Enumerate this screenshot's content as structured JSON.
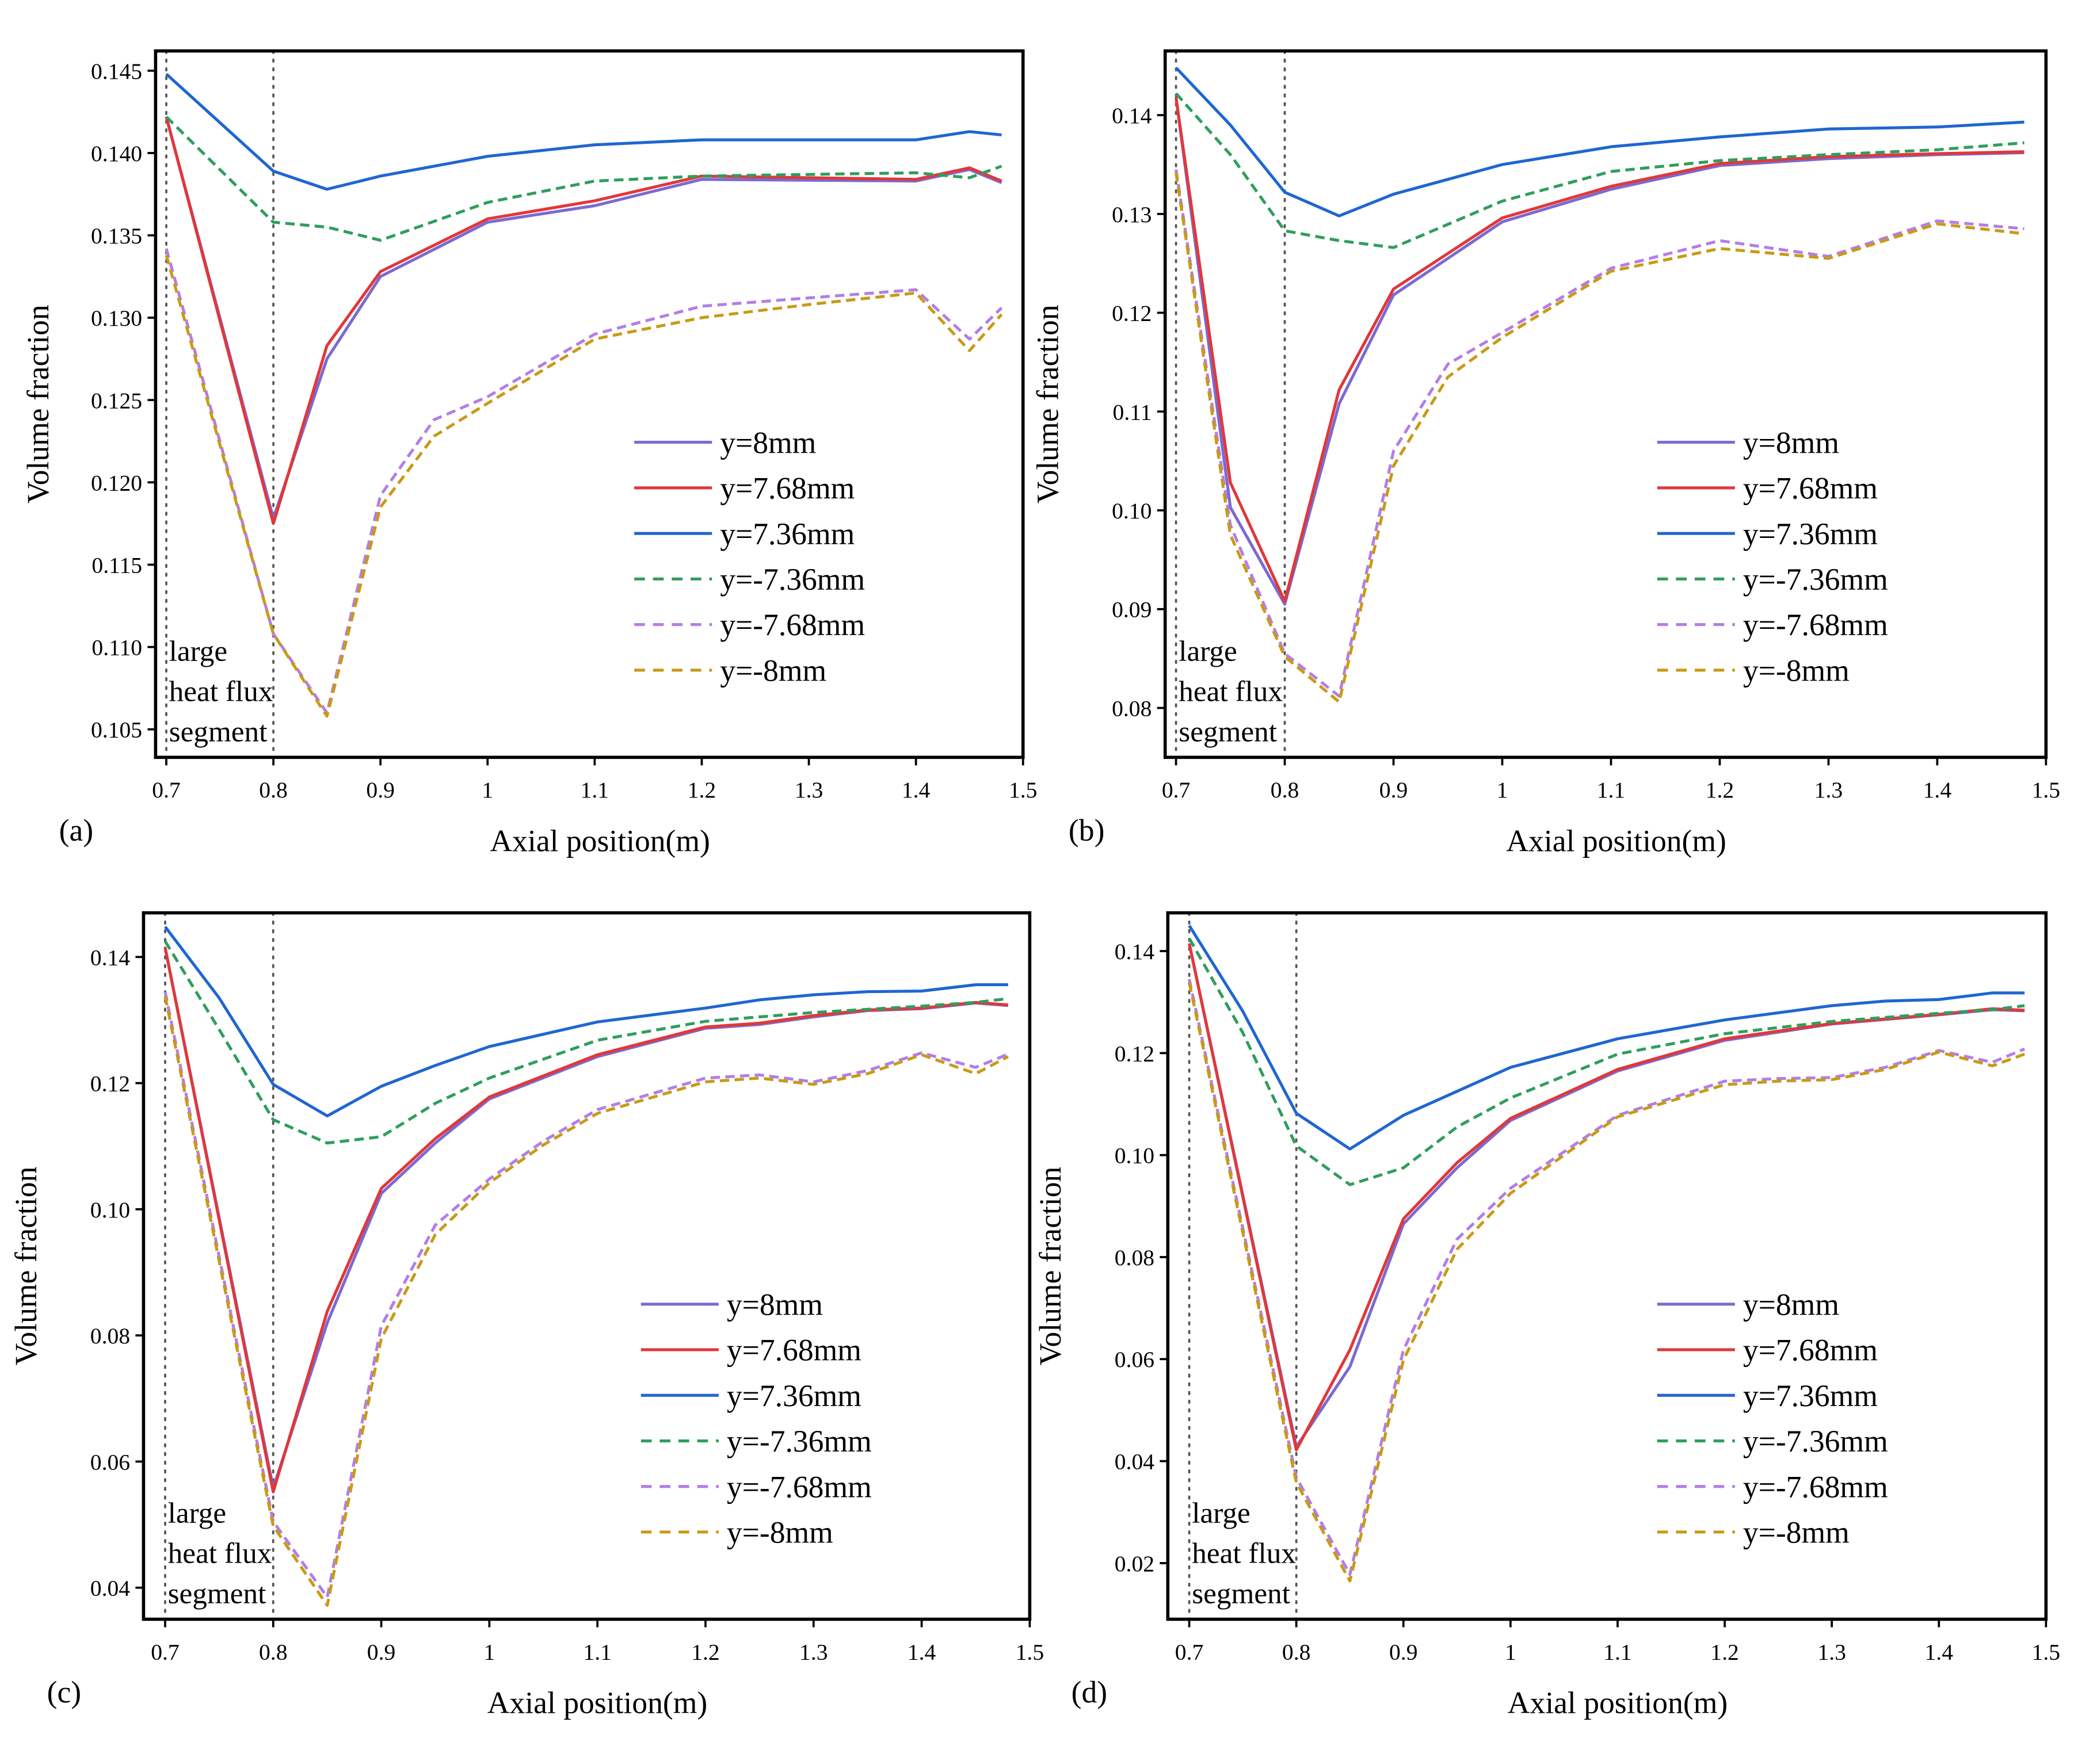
{
  "figure": {
    "colors": {
      "y=8mm": "#7b6ad1",
      "y=7.68mm": "#e0383a",
      "y=7.36mm": "#1f66d1",
      "y=-7.36mm": "#2f9e5c",
      "y=-7.68mm": "#b37ee6",
      "y=-8mm": "#c99a16"
    },
    "annotation_lines": [
      "large",
      "heat flux",
      "segment"
    ]
  },
  "chart_data": [
    {
      "type": "line",
      "panel_label": "(a)",
      "xlabel": "Axial position(m)",
      "ylabel": "Volume fraction",
      "xlim": [
        0.69,
        1.5
      ],
      "ylim": [
        0.1033,
        0.1462
      ],
      "xticks": [
        0.7,
        0.8,
        0.9,
        1.0,
        1.1,
        1.2,
        1.3,
        1.4,
        1.5
      ],
      "xtick_labels": [
        "0.7",
        "0.8",
        "0.9",
        "1",
        "1.1",
        "1.2",
        "1.3",
        "1.4",
        "1.5"
      ],
      "yticks": [
        0.105,
        0.11,
        0.115,
        0.12,
        0.125,
        0.13,
        0.135,
        0.14,
        0.145
      ],
      "ytick_labels": [
        "0.105",
        "0.110",
        "0.115",
        "0.120",
        "0.125",
        "0.130",
        "0.135",
        "0.140",
        "0.145"
      ],
      "vlines": [
        0.7,
        0.8
      ],
      "legend_position": "center-right",
      "series": [
        {
          "name": "y=8mm",
          "style": "solid",
          "x": [
            0.7,
            0.8,
            0.85,
            0.9,
            1.0,
            1.1,
            1.2,
            1.4,
            1.45,
            1.48
          ],
          "y": [
            0.1422,
            0.1178,
            0.1275,
            0.1325,
            0.1358,
            0.1368,
            0.1384,
            0.1383,
            0.139,
            0.1382
          ]
        },
        {
          "name": "y=7.68mm",
          "style": "solid",
          "x": [
            0.7,
            0.8,
            0.85,
            0.9,
            1.0,
            1.1,
            1.2,
            1.4,
            1.45,
            1.48
          ],
          "y": [
            0.1422,
            0.1175,
            0.1283,
            0.1328,
            0.136,
            0.1371,
            0.1386,
            0.1384,
            0.1391,
            0.1383
          ]
        },
        {
          "name": "y=7.36mm",
          "style": "solid",
          "x": [
            0.7,
            0.8,
            0.85,
            0.9,
            1.0,
            1.1,
            1.2,
            1.4,
            1.45,
            1.48
          ],
          "y": [
            0.1448,
            0.1389,
            0.1378,
            0.1386,
            0.1398,
            0.1405,
            0.1408,
            0.1408,
            0.1413,
            0.1411
          ]
        },
        {
          "name": "y=-7.36mm",
          "style": "dashed",
          "x": [
            0.7,
            0.8,
            0.85,
            0.9,
            1.0,
            1.1,
            1.2,
            1.4,
            1.45,
            1.48
          ],
          "y": [
            0.1422,
            0.1358,
            0.1355,
            0.1347,
            0.137,
            0.1383,
            0.1386,
            0.1388,
            0.1385,
            0.1392
          ]
        },
        {
          "name": "y=-7.68mm",
          "style": "dashed",
          "x": [
            0.7,
            0.8,
            0.85,
            0.9,
            0.95,
            1.0,
            1.1,
            1.2,
            1.3,
            1.4,
            1.45,
            1.48
          ],
          "y": [
            0.1342,
            0.1108,
            0.106,
            0.1192,
            0.1238,
            0.1252,
            0.129,
            0.1307,
            0.1312,
            0.1317,
            0.1287,
            0.1306
          ]
        },
        {
          "name": "y=-8mm",
          "style": "dashed",
          "x": [
            0.7,
            0.8,
            0.85,
            0.9,
            0.95,
            1.0,
            1.1,
            1.2,
            1.3,
            1.4,
            1.45,
            1.48
          ],
          "y": [
            0.1338,
            0.1108,
            0.1058,
            0.1185,
            0.1228,
            0.1248,
            0.1287,
            0.13,
            0.1308,
            0.1315,
            0.128,
            0.1302
          ]
        }
      ]
    },
    {
      "type": "line",
      "panel_label": "(b)",
      "xlabel": "Axial position(m)",
      "ylabel": "Volume fraction",
      "xlim": [
        0.69,
        1.5
      ],
      "ylim": [
        0.075,
        0.1465
      ],
      "xticks": [
        0.7,
        0.8,
        0.9,
        1.0,
        1.1,
        1.2,
        1.3,
        1.4,
        1.5
      ],
      "xtick_labels": [
        "0.7",
        "0.8",
        "0.9",
        "1",
        "1.1",
        "1.2",
        "1.3",
        "1.4",
        "1.5"
      ],
      "yticks": [
        0.08,
        0.09,
        0.1,
        0.11,
        0.12,
        0.13,
        0.14
      ],
      "ytick_labels": [
        "0.08",
        "0.09",
        "0.10",
        "0.11",
        "0.12",
        "0.13",
        "0.14"
      ],
      "vlines": [
        0.7,
        0.8
      ],
      "legend_position": "center-right",
      "series": [
        {
          "name": "y=8mm",
          "style": "solid",
          "x": [
            0.7,
            0.75,
            0.8,
            0.85,
            0.9,
            1.0,
            1.1,
            1.2,
            1.3,
            1.4,
            1.48
          ],
          "y": [
            0.1418,
            0.1003,
            0.0905,
            0.1108,
            0.1218,
            0.1292,
            0.1325,
            0.1349,
            0.1356,
            0.136,
            0.1362
          ]
        },
        {
          "name": "y=7.68mm",
          "style": "solid",
          "x": [
            0.7,
            0.75,
            0.8,
            0.85,
            0.9,
            1.0,
            1.1,
            1.2,
            1.3,
            1.4,
            1.48
          ],
          "y": [
            0.1418,
            0.1028,
            0.0908,
            0.1122,
            0.1224,
            0.1296,
            0.1328,
            0.1351,
            0.1358,
            0.1361,
            0.1363
          ]
        },
        {
          "name": "y=7.36mm",
          "style": "solid",
          "x": [
            0.7,
            0.75,
            0.8,
            0.85,
            0.9,
            1.0,
            1.1,
            1.2,
            1.3,
            1.4,
            1.48
          ],
          "y": [
            0.1448,
            0.139,
            0.1322,
            0.1298,
            0.132,
            0.135,
            0.1368,
            0.1378,
            0.1386,
            0.1388,
            0.1393
          ]
        },
        {
          "name": "y=-7.36mm",
          "style": "dashed",
          "x": [
            0.7,
            0.75,
            0.8,
            0.85,
            0.9,
            1.0,
            1.1,
            1.2,
            1.3,
            1.4,
            1.48
          ],
          "y": [
            0.1422,
            0.136,
            0.1283,
            0.1273,
            0.1266,
            0.1313,
            0.1343,
            0.1354,
            0.136,
            0.1365,
            0.1372
          ]
        },
        {
          "name": "y=-7.68mm",
          "style": "dashed",
          "x": [
            0.7,
            0.75,
            0.8,
            0.85,
            0.9,
            0.95,
            1.0,
            1.1,
            1.2,
            1.3,
            1.4,
            1.48
          ],
          "y": [
            0.1345,
            0.0985,
            0.0855,
            0.0812,
            0.106,
            0.1148,
            0.118,
            0.1245,
            0.1273,
            0.1257,
            0.1293,
            0.1285
          ]
        },
        {
          "name": "y=-8mm",
          "style": "dashed",
          "x": [
            0.7,
            0.75,
            0.8,
            0.85,
            0.9,
            0.95,
            1.0,
            1.1,
            1.2,
            1.3,
            1.4,
            1.48
          ],
          "y": [
            0.1342,
            0.0975,
            0.0852,
            0.0806,
            0.1045,
            0.1135,
            0.1175,
            0.1242,
            0.1265,
            0.1255,
            0.129,
            0.128
          ]
        }
      ]
    },
    {
      "type": "line",
      "panel_label": "(c)",
      "xlabel": "Axial position(m)",
      "ylabel": "Volume fraction",
      "xlim": [
        0.68,
        1.5
      ],
      "ylim": [
        0.035,
        0.147
      ],
      "xticks": [
        0.7,
        0.8,
        0.9,
        1.0,
        1.1,
        1.2,
        1.3,
        1.4,
        1.5
      ],
      "xtick_labels": [
        "0.7",
        "0.8",
        "0.9",
        "1",
        "1.1",
        "1.2",
        "1.3",
        "1.4",
        "1.5"
      ],
      "yticks": [
        0.04,
        0.06,
        0.08,
        0.1,
        0.12,
        0.14
      ],
      "ytick_labels": [
        "0.04",
        "0.06",
        "0.08",
        "0.10",
        "0.12",
        "0.14"
      ],
      "vlines": [
        0.7,
        0.8
      ],
      "legend_position": "center-right",
      "series": [
        {
          "name": "y=8mm",
          "style": "solid",
          "x": [
            0.7,
            0.8,
            0.85,
            0.9,
            0.95,
            1.0,
            1.1,
            1.2,
            1.25,
            1.3,
            1.35,
            1.4,
            1.45,
            1.48
          ],
          "y": [
            0.1415,
            0.0558,
            0.082,
            0.1025,
            0.1105,
            0.1175,
            0.1242,
            0.1287,
            0.1293,
            0.1305,
            0.1315,
            0.1318,
            0.1327,
            0.1323
          ]
        },
        {
          "name": "y=7.68mm",
          "style": "solid",
          "x": [
            0.7,
            0.8,
            0.85,
            0.9,
            0.95,
            1.0,
            1.1,
            1.2,
            1.25,
            1.3,
            1.35,
            1.4,
            1.45,
            1.48
          ],
          "y": [
            0.1415,
            0.0552,
            0.0838,
            0.1033,
            0.1112,
            0.1178,
            0.1245,
            0.1289,
            0.1295,
            0.1307,
            0.1316,
            0.1319,
            0.1328,
            0.1324
          ]
        },
        {
          "name": "y=7.36mm",
          "style": "solid",
          "x": [
            0.7,
            0.75,
            0.8,
            0.85,
            0.9,
            0.95,
            1.0,
            1.1,
            1.2,
            1.25,
            1.3,
            1.35,
            1.4,
            1.45,
            1.48
          ],
          "y": [
            0.1448,
            0.1335,
            0.1198,
            0.1148,
            0.1195,
            0.1228,
            0.1258,
            0.1297,
            0.1319,
            0.1332,
            0.134,
            0.1345,
            0.1346,
            0.1356,
            0.1356
          ]
        },
        {
          "name": "y=-7.36mm",
          "style": "dashed",
          "x": [
            0.7,
            0.75,
            0.8,
            0.85,
            0.9,
            0.95,
            1.0,
            1.1,
            1.2,
            1.3,
            1.4,
            1.45,
            1.48
          ],
          "y": [
            0.1425,
            0.1285,
            0.1142,
            0.1105,
            0.1115,
            0.1168,
            0.1208,
            0.1268,
            0.1298,
            0.1312,
            0.1322,
            0.1328,
            0.1334
          ]
        },
        {
          "name": "y=-7.68mm",
          "style": "dashed",
          "x": [
            0.7,
            0.8,
            0.85,
            0.9,
            0.95,
            1.0,
            1.05,
            1.1,
            1.2,
            1.25,
            1.3,
            1.35,
            1.4,
            1.45,
            1.48
          ],
          "y": [
            0.1345,
            0.0505,
            0.0385,
            0.0815,
            0.0975,
            0.1048,
            0.1108,
            0.1158,
            0.1208,
            0.1213,
            0.1202,
            0.122,
            0.1248,
            0.1225,
            0.1246
          ]
        },
        {
          "name": "y=-8mm",
          "style": "dashed",
          "x": [
            0.7,
            0.8,
            0.85,
            0.9,
            0.95,
            1.0,
            1.05,
            1.1,
            1.2,
            1.25,
            1.3,
            1.35,
            1.4,
            1.45,
            1.48
          ],
          "y": [
            0.1338,
            0.0498,
            0.0372,
            0.0795,
            0.096,
            0.1042,
            0.1102,
            0.1152,
            0.1202,
            0.1208,
            0.1198,
            0.1215,
            0.1245,
            0.1215,
            0.1242
          ]
        }
      ]
    },
    {
      "type": "line",
      "panel_label": "(d)",
      "xlabel": "Axial position(m)",
      "ylabel": "Volume fraction",
      "xlim": [
        0.68,
        1.5
      ],
      "ylim": [
        0.009,
        0.1475
      ],
      "xticks": [
        0.7,
        0.8,
        0.9,
        1.0,
        1.1,
        1.2,
        1.3,
        1.4,
        1.5
      ],
      "xtick_labels": [
        "0.7",
        "0.8",
        "0.9",
        "1",
        "1.1",
        "1.2",
        "1.3",
        "1.4",
        "1.5"
      ],
      "yticks": [
        0.02,
        0.04,
        0.06,
        0.08,
        0.1,
        0.12,
        0.14
      ],
      "ytick_labels": [
        "0.02",
        "0.04",
        "0.06",
        "0.08",
        "0.10",
        "0.12",
        "0.14"
      ],
      "vlines": [
        0.7,
        0.8
      ],
      "legend_position": "center-right",
      "series": [
        {
          "name": "y=8mm",
          "style": "solid",
          "x": [
            0.7,
            0.8,
            0.85,
            0.9,
            0.95,
            1.0,
            1.1,
            1.2,
            1.3,
            1.4,
            1.45,
            1.48
          ],
          "y": [
            0.1415,
            0.0428,
            0.0585,
            0.0865,
            0.0975,
            0.1068,
            0.1165,
            0.1225,
            0.1257,
            0.1275,
            0.1285,
            0.1283
          ]
        },
        {
          "name": "y=7.68mm",
          "style": "solid",
          "x": [
            0.7,
            0.8,
            0.85,
            0.9,
            0.95,
            1.0,
            1.1,
            1.2,
            1.3,
            1.4,
            1.45,
            1.48
          ],
          "y": [
            0.1415,
            0.0422,
            0.0618,
            0.0875,
            0.0985,
            0.1072,
            0.1168,
            0.1228,
            0.1258,
            0.1276,
            0.1287,
            0.1284
          ]
        },
        {
          "name": "y=7.36mm",
          "style": "solid",
          "x": [
            0.7,
            0.75,
            0.8,
            0.85,
            0.9,
            0.95,
            1.0,
            1.1,
            1.2,
            1.3,
            1.35,
            1.4,
            1.45,
            1.48
          ],
          "y": [
            0.145,
            0.1282,
            0.1082,
            0.1012,
            0.1078,
            0.1125,
            0.1172,
            0.1228,
            0.1265,
            0.1293,
            0.1302,
            0.1305,
            0.1318,
            0.1318
          ]
        },
        {
          "name": "y=-7.36mm",
          "style": "dashed",
          "x": [
            0.7,
            0.75,
            0.8,
            0.85,
            0.9,
            0.95,
            1.0,
            1.1,
            1.2,
            1.3,
            1.4,
            1.45,
            1.48
          ],
          "y": [
            0.1425,
            0.124,
            0.1018,
            0.0942,
            0.0975,
            0.1055,
            0.1112,
            0.1198,
            0.1238,
            0.1262,
            0.1278,
            0.1285,
            0.1293
          ]
        },
        {
          "name": "y=-7.68mm",
          "style": "dashed",
          "x": [
            0.7,
            0.8,
            0.85,
            0.9,
            0.95,
            1.0,
            1.1,
            1.2,
            1.25,
            1.3,
            1.35,
            1.4,
            1.45,
            1.48
          ],
          "y": [
            0.1345,
            0.0368,
            0.0178,
            0.0618,
            0.0835,
            0.0935,
            0.1078,
            0.1145,
            0.115,
            0.1152,
            0.1172,
            0.1205,
            0.1182,
            0.1208
          ]
        },
        {
          "name": "y=-8mm",
          "style": "dashed",
          "x": [
            0.7,
            0.8,
            0.85,
            0.9,
            0.95,
            1.0,
            1.1,
            1.2,
            1.25,
            1.3,
            1.35,
            1.4,
            1.45,
            1.48
          ],
          "y": [
            0.1338,
            0.0358,
            0.0165,
            0.0598,
            0.0815,
            0.0925,
            0.1075,
            0.1138,
            0.1145,
            0.1148,
            0.1168,
            0.1202,
            0.1175,
            0.1198
          ]
        }
      ]
    }
  ]
}
